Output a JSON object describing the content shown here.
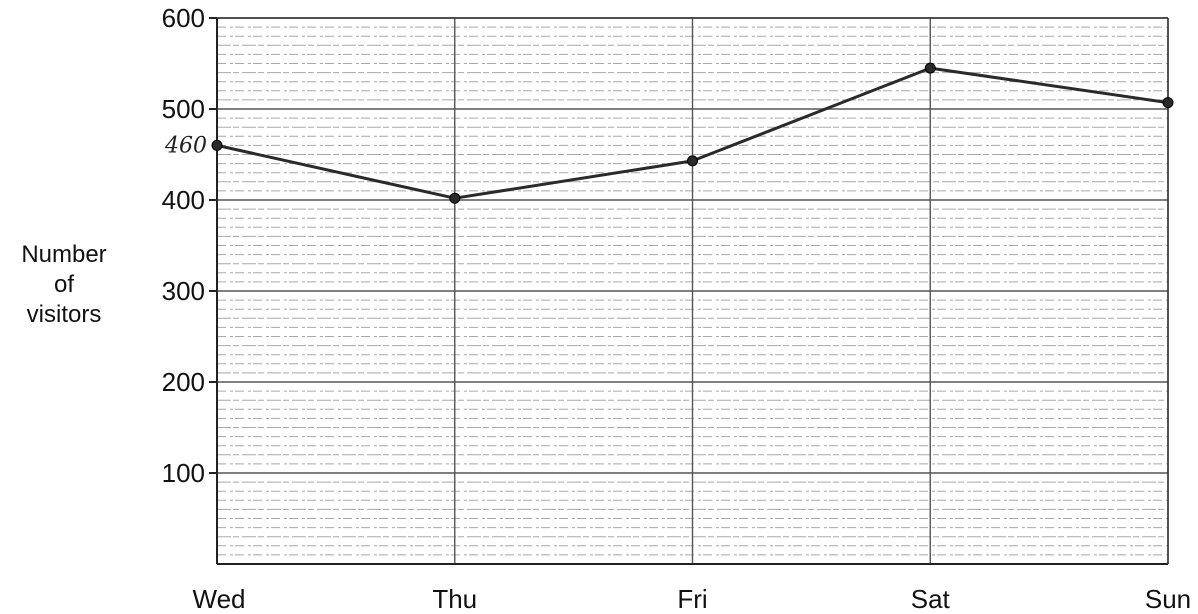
{
  "chart_data": {
    "type": "line",
    "title": "",
    "xlabel": "",
    "ylabel": [
      "Number",
      "of",
      "visitors"
    ],
    "categories": [
      "Wed",
      "Thu",
      "Fri",
      "Sat",
      "Sun"
    ],
    "series": [
      {
        "values": [
          460,
          402,
          443,
          545,
          507
        ]
      }
    ],
    "ylim": [
      0,
      600
    ],
    "yticks": [
      100,
      200,
      300,
      400,
      500,
      600
    ],
    "grid": "lined paper with vertical lines at each day",
    "legend": "none",
    "annotations": [
      {
        "text": "460",
        "category": "Wed",
        "value": 460
      }
    ],
    "colors": {
      "line": "#2a2a2a",
      "grid": "#555555",
      "gridMinor": "#9a9a9a"
    }
  }
}
